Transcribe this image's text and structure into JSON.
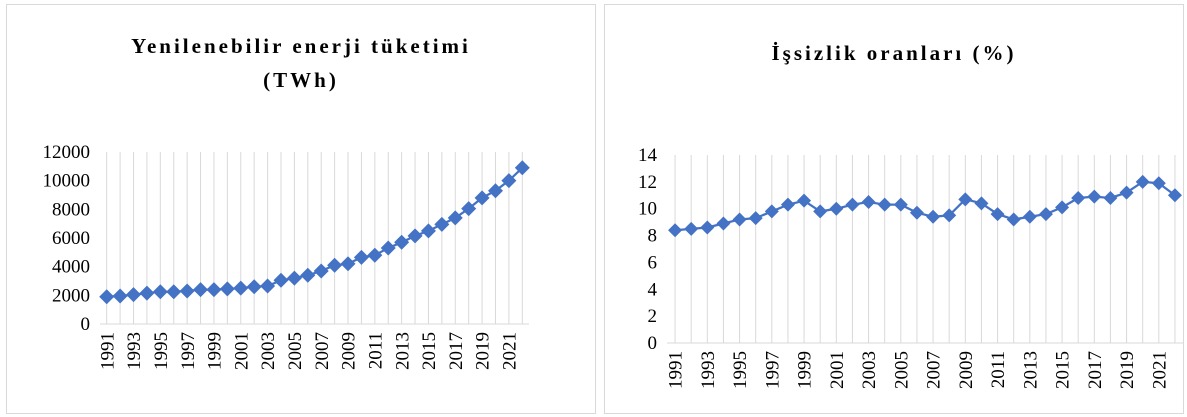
{
  "chart_data": [
    {
      "type": "scatter",
      "title_lines": [
        "Yenilenebilir enerji tüketimi",
        "(TWh)"
      ],
      "xlabel": "",
      "ylabel": "",
      "ylim": [
        0,
        12000
      ],
      "yticks": [
        0,
        2000,
        4000,
        6000,
        8000,
        10000,
        12000
      ],
      "xtick_labels": [
        "1991",
        "1993",
        "1995",
        "1997",
        "1999",
        "2001",
        "2003",
        "2005",
        "2007",
        "2009",
        "2011",
        "2013",
        "2015",
        "2017",
        "2019",
        "2021"
      ],
      "vertical_grid": true,
      "legend": "none",
      "marker": "diamond",
      "color": "#4472C4",
      "x": [
        1991,
        1992,
        1993,
        1994,
        1995,
        1996,
        1997,
        1998,
        1999,
        2000,
        2001,
        2002,
        2003,
        2004,
        2005,
        2006,
        2007,
        2008,
        2009,
        2010,
        2011,
        2012,
        2013,
        2014,
        2015,
        2016,
        2017,
        2018,
        2019,
        2020,
        2021,
        2022
      ],
      "values": [
        1900,
        1950,
        2050,
        2150,
        2250,
        2250,
        2300,
        2400,
        2400,
        2450,
        2500,
        2600,
        2650,
        3050,
        3200,
        3400,
        3700,
        4100,
        4200,
        4650,
        4800,
        5300,
        5700,
        6150,
        6500,
        6950,
        7400,
        8050,
        8800,
        9300,
        10000,
        10900
      ]
    },
    {
      "type": "scatter",
      "title_lines": [
        "İşsizlik oranları (%)"
      ],
      "xlabel": "",
      "ylabel": "",
      "ylim": [
        0,
        14
      ],
      "yticks": [
        0,
        2,
        4,
        6,
        8,
        10,
        12,
        14
      ],
      "xtick_labels": [
        "1991",
        "1993",
        "1995",
        "1997",
        "1999",
        "2001",
        "2003",
        "2005",
        "2007",
        "2009",
        "2011",
        "2013",
        "2015",
        "2017",
        "2019",
        "2021"
      ],
      "vertical_grid": true,
      "legend": "none",
      "marker": "diamond",
      "color": "#4472C4",
      "x": [
        1991,
        1992,
        1993,
        1994,
        1995,
        1996,
        1997,
        1998,
        1999,
        2000,
        2001,
        2002,
        2003,
        2004,
        2005,
        2006,
        2007,
        2008,
        2009,
        2010,
        2011,
        2012,
        2013,
        2014,
        2015,
        2016,
        2017,
        2018,
        2019,
        2020,
        2021,
        2022
      ],
      "values": [
        8.4,
        8.5,
        8.6,
        8.9,
        9.2,
        9.3,
        9.8,
        10.3,
        10.6,
        9.8,
        10.0,
        10.3,
        10.5,
        10.3,
        10.3,
        9.7,
        9.4,
        9.5,
        10.7,
        10.4,
        9.6,
        9.2,
        9.4,
        9.6,
        10.1,
        10.8,
        10.9,
        10.8,
        11.2,
        12.0,
        11.9,
        11.0
      ]
    }
  ]
}
